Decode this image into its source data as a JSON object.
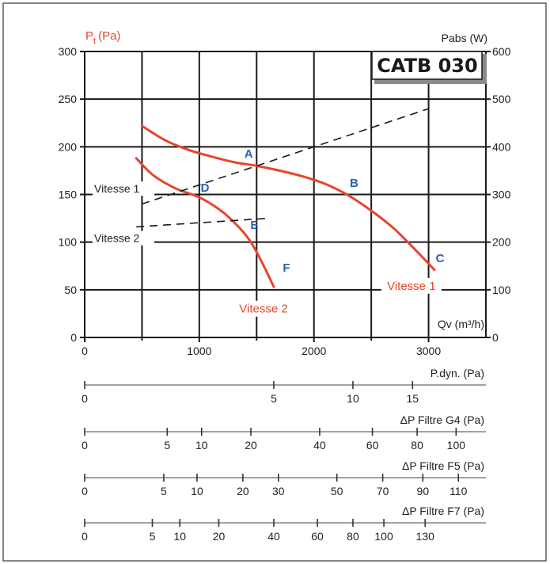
{
  "chart_data": {
    "type": "line",
    "title": "CATB 030",
    "x_axis": {
      "label": "Qv (m³/h)",
      "range": [
        0,
        3500
      ],
      "ticks": [
        0,
        1000,
        2000,
        3000
      ]
    },
    "y_axis_left": {
      "label_main": "P",
      "label_sub": "t",
      "label_unit": "(Pa)",
      "range": [
        0,
        300
      ],
      "ticks": [
        0,
        50,
        100,
        150,
        200,
        250,
        300
      ]
    },
    "y_axis_right": {
      "label": "Pabs (W)",
      "range": [
        0,
        600
      ],
      "ticks": [
        0,
        100,
        200,
        300,
        400,
        500,
        600
      ]
    },
    "grid": true,
    "pressure_curves": [
      {
        "name": "Vitesse 1",
        "color": "#e8452c",
        "x": [
          500,
          700,
          900,
          1100,
          1300,
          1500,
          1700,
          1900,
          2100,
          2300,
          2500,
          2700,
          2900,
          3050
        ],
        "y": [
          222,
          207,
          197,
          190,
          184,
          180,
          175,
          169,
          161,
          149,
          133,
          114,
          90,
          71
        ]
      },
      {
        "name": "Vitesse 2",
        "color": "#e8452c",
        "x": [
          450,
          600,
          800,
          1000,
          1200,
          1350,
          1450,
          1550,
          1650
        ],
        "y": [
          188,
          170,
          156,
          147,
          132,
          115,
          100,
          78,
          53
        ]
      }
    ],
    "power_curves": [
      {
        "name": "Vitesse 1",
        "axis": "right",
        "x": [
          500,
          3000
        ],
        "y": [
          280,
          480
        ]
      },
      {
        "name": "Vitesse 2",
        "axis": "right",
        "x": [
          450,
          1600
        ],
        "y": [
          232,
          250
        ]
      }
    ],
    "curve_labels": [
      {
        "text": "Vitesse 1",
        "x": 2850,
        "y": 50
      },
      {
        "text": "Vitesse 2",
        "x": 1560,
        "y": 26
      }
    ],
    "left_labels": [
      {
        "text": "Vitesse 1",
        "y": 152
      },
      {
        "text": "Vitesse 2",
        "y": 100
      }
    ],
    "points": [
      {
        "name": "A",
        "x": 1430,
        "y": 193
      },
      {
        "name": "B",
        "x": 2350,
        "y": 162
      },
      {
        "name": "C",
        "x": 3100,
        "y": 83
      },
      {
        "name": "D",
        "x": 1050,
        "y": 157
      },
      {
        "name": "E",
        "x": 1480,
        "y": 118
      },
      {
        "name": "F",
        "x": 1760,
        "y": 73
      }
    ],
    "secondary_scales": [
      {
        "label": "P.dyn. (Pa)",
        "ticks": [
          {
            "v": "0",
            "x": 0
          },
          {
            "v": "5",
            "x": 1650
          },
          {
            "v": "10",
            "x": 2340
          },
          {
            "v": "15",
            "x": 2860
          }
        ]
      },
      {
        "label": "ΔP Filtre G4 (Pa)",
        "ticks": [
          {
            "v": "0",
            "x": 0
          },
          {
            "v": "5",
            "x": 720
          },
          {
            "v": "10",
            "x": 1020
          },
          {
            "v": "20",
            "x": 1450
          },
          {
            "v": "40",
            "x": 2050
          },
          {
            "v": "60",
            "x": 2510
          },
          {
            "v": "80",
            "x": 2900
          },
          {
            "v": "100",
            "x": 3240
          }
        ]
      },
      {
        "label": "ΔP Filtre F5 (Pa)",
        "ticks": [
          {
            "v": "0",
            "x": 0
          },
          {
            "v": "5",
            "x": 690
          },
          {
            "v": "10",
            "x": 980
          },
          {
            "v": "20",
            "x": 1380
          },
          {
            "v": "30",
            "x": 1690
          },
          {
            "v": "50",
            "x": 2200
          },
          {
            "v": "70",
            "x": 2600
          },
          {
            "v": "90",
            "x": 2950
          },
          {
            "v": "110",
            "x": 3260
          }
        ]
      },
      {
        "label": "ΔP Filtre F7 (Pa)",
        "ticks": [
          {
            "v": "0",
            "x": 0
          },
          {
            "v": "5",
            "x": 590
          },
          {
            "v": "10",
            "x": 830
          },
          {
            "v": "20",
            "x": 1170
          },
          {
            "v": "40",
            "x": 1650
          },
          {
            "v": "60",
            "x": 2030
          },
          {
            "v": "80",
            "x": 2340
          },
          {
            "v": "100",
            "x": 2610
          },
          {
            "v": "130",
            "x": 2970
          }
        ]
      }
    ]
  }
}
